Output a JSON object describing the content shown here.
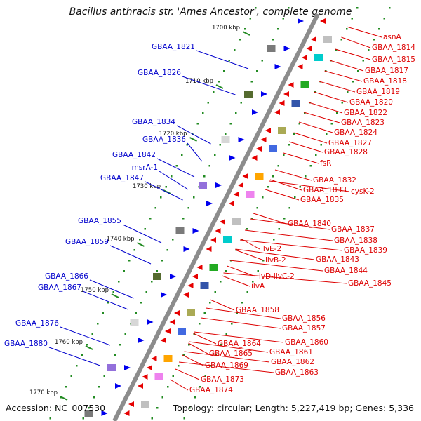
{
  "title": "Bacillus anthracis str. 'Ames Ancestor', complete genome",
  "accession": "Accession: NC_007530",
  "topology": "Topology: circular; Length: 5,227,419 bp; Genes: 5,336",
  "colors": {
    "backbone": "#8c8c8c",
    "left_label": "#0000cc",
    "right_label": "#dd0000",
    "dots": "#228b22",
    "arrow_red": "#e60000",
    "arrow_blue": "#0000ee"
  },
  "ticks": [
    "1700 kbp",
    "1710 kbp",
    "1720 kbp",
    "1730 kbp",
    "1740 kbp",
    "1750 kbp",
    "1760 kbp",
    "1770 kbp"
  ],
  "left_genes": [
    "GBAA_1821",
    "GBAA_1826",
    "GBAA_1834",
    "GBAA_1836",
    "GBAA_1842",
    "msrA-1",
    "GBAA_1847",
    "GBAA_1855",
    "GBAA_1859",
    "GBAA_1866",
    "GBAA_1867",
    "GBAA_1876",
    "GBAA_1880"
  ],
  "right_genes": [
    "asnA",
    "GBAA_1814",
    "GBAA_1815",
    "GBAA_1817",
    "GBAA_1818",
    "GBAA_1819",
    "GBAA_1820",
    "GBAA_1822",
    "GBAA_1823",
    "GBAA_1824",
    "GBAA_1827",
    "GBAA_1828",
    "fsR",
    "GBAA_1832",
    "GBAA_1833",
    "cysK-2",
    "GBAA_1835",
    "GBAA_1840",
    "GBAA_1837",
    "GBAA_1838",
    "GBAA_1839",
    "ilvE-2",
    "GBAA_1843",
    "ilvB-2",
    "GBAA_1844",
    "ilvD-ilvC-2",
    "GBAA_1845",
    "ilvA",
    "GBAA_1858",
    "GBAA_1856",
    "GBAA_1857",
    "GBAA_1860",
    "GBAA_1864",
    "GBAA_1861",
    "GBAA_1865",
    "GBAA_1862",
    "GBAA_1869",
    "GBAA_1863",
    "GBAA_1873",
    "GBAA_1874"
  ]
}
